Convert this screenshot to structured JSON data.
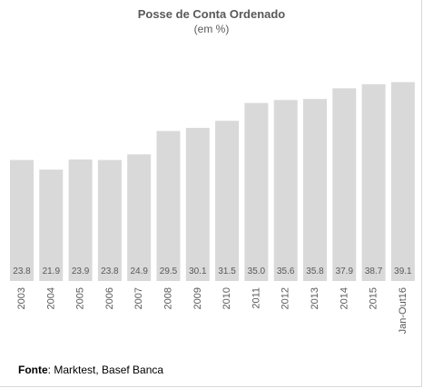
{
  "chart_data": {
    "type": "bar",
    "title": "Posse de Conta Ordenado",
    "subtitle": "(em %)",
    "categories": [
      "2003",
      "2004",
      "2005",
      "2006",
      "2007",
      "2008",
      "2009",
      "2010",
      "2011",
      "2012",
      "2013",
      "2014",
      "2015",
      "Jan-Out16"
    ],
    "values": [
      23.8,
      21.9,
      23.9,
      23.8,
      24.9,
      29.5,
      30.1,
      31.5,
      35.0,
      35.6,
      35.8,
      37.9,
      38.7,
      39.1
    ],
    "value_labels": [
      "23.8",
      "21.9",
      "23.9",
      "23.8",
      "24.9",
      "29.5",
      "30.1",
      "31.5",
      "35.0",
      "35.6",
      "35.8",
      "37.9",
      "38.7",
      "39.1"
    ],
    "xlabel": "",
    "ylabel": "",
    "bar_color": "#d9d9d9",
    "label_color": "#595959",
    "grid": false,
    "legend": "none"
  },
  "source": {
    "label": "Fonte",
    "text": ": Marktest, Basef Banca"
  }
}
